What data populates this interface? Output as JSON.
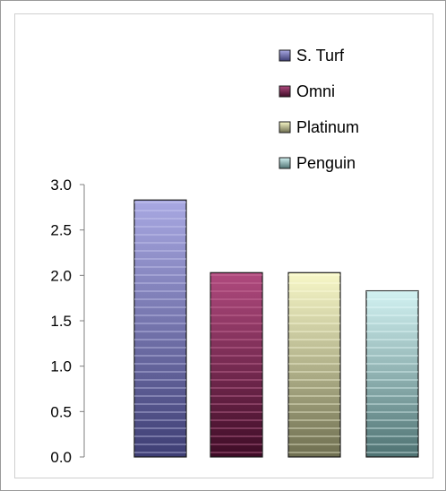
{
  "chart_data": {
    "type": "bar",
    "categories": [
      "S. Turf",
      "Omni",
      "Platinum",
      "Penguin"
    ],
    "values": [
      2.83,
      2.03,
      2.03,
      1.83
    ],
    "ylim": [
      0,
      3.0
    ],
    "yticks": [
      "0.0",
      "0.5",
      "1.0",
      "1.5",
      "2.0",
      "2.5",
      "3.0"
    ],
    "legend": {
      "placement": "top-right",
      "entries": [
        "S. Turf",
        "Omni",
        "Platinum",
        "Penguin"
      ]
    },
    "colors": {
      "S. Turf": {
        "top": "#a8a8e2",
        "bottom": "#3e3e74",
        "stripe": "#d0d0f2"
      },
      "Omni": {
        "top": "#b04a7e",
        "bottom": "#3e0c26",
        "stripe": "#d07aa4"
      },
      "Platinum": {
        "top": "#f8f8c8",
        "bottom": "#6e6e50",
        "stripe": "#ffffe2"
      },
      "Penguin": {
        "top": "#d2f2f2",
        "bottom": "#4e7272",
        "stripe": "#eaffff"
      }
    },
    "grid": false,
    "title": "",
    "xlabel": "",
    "ylabel": ""
  }
}
